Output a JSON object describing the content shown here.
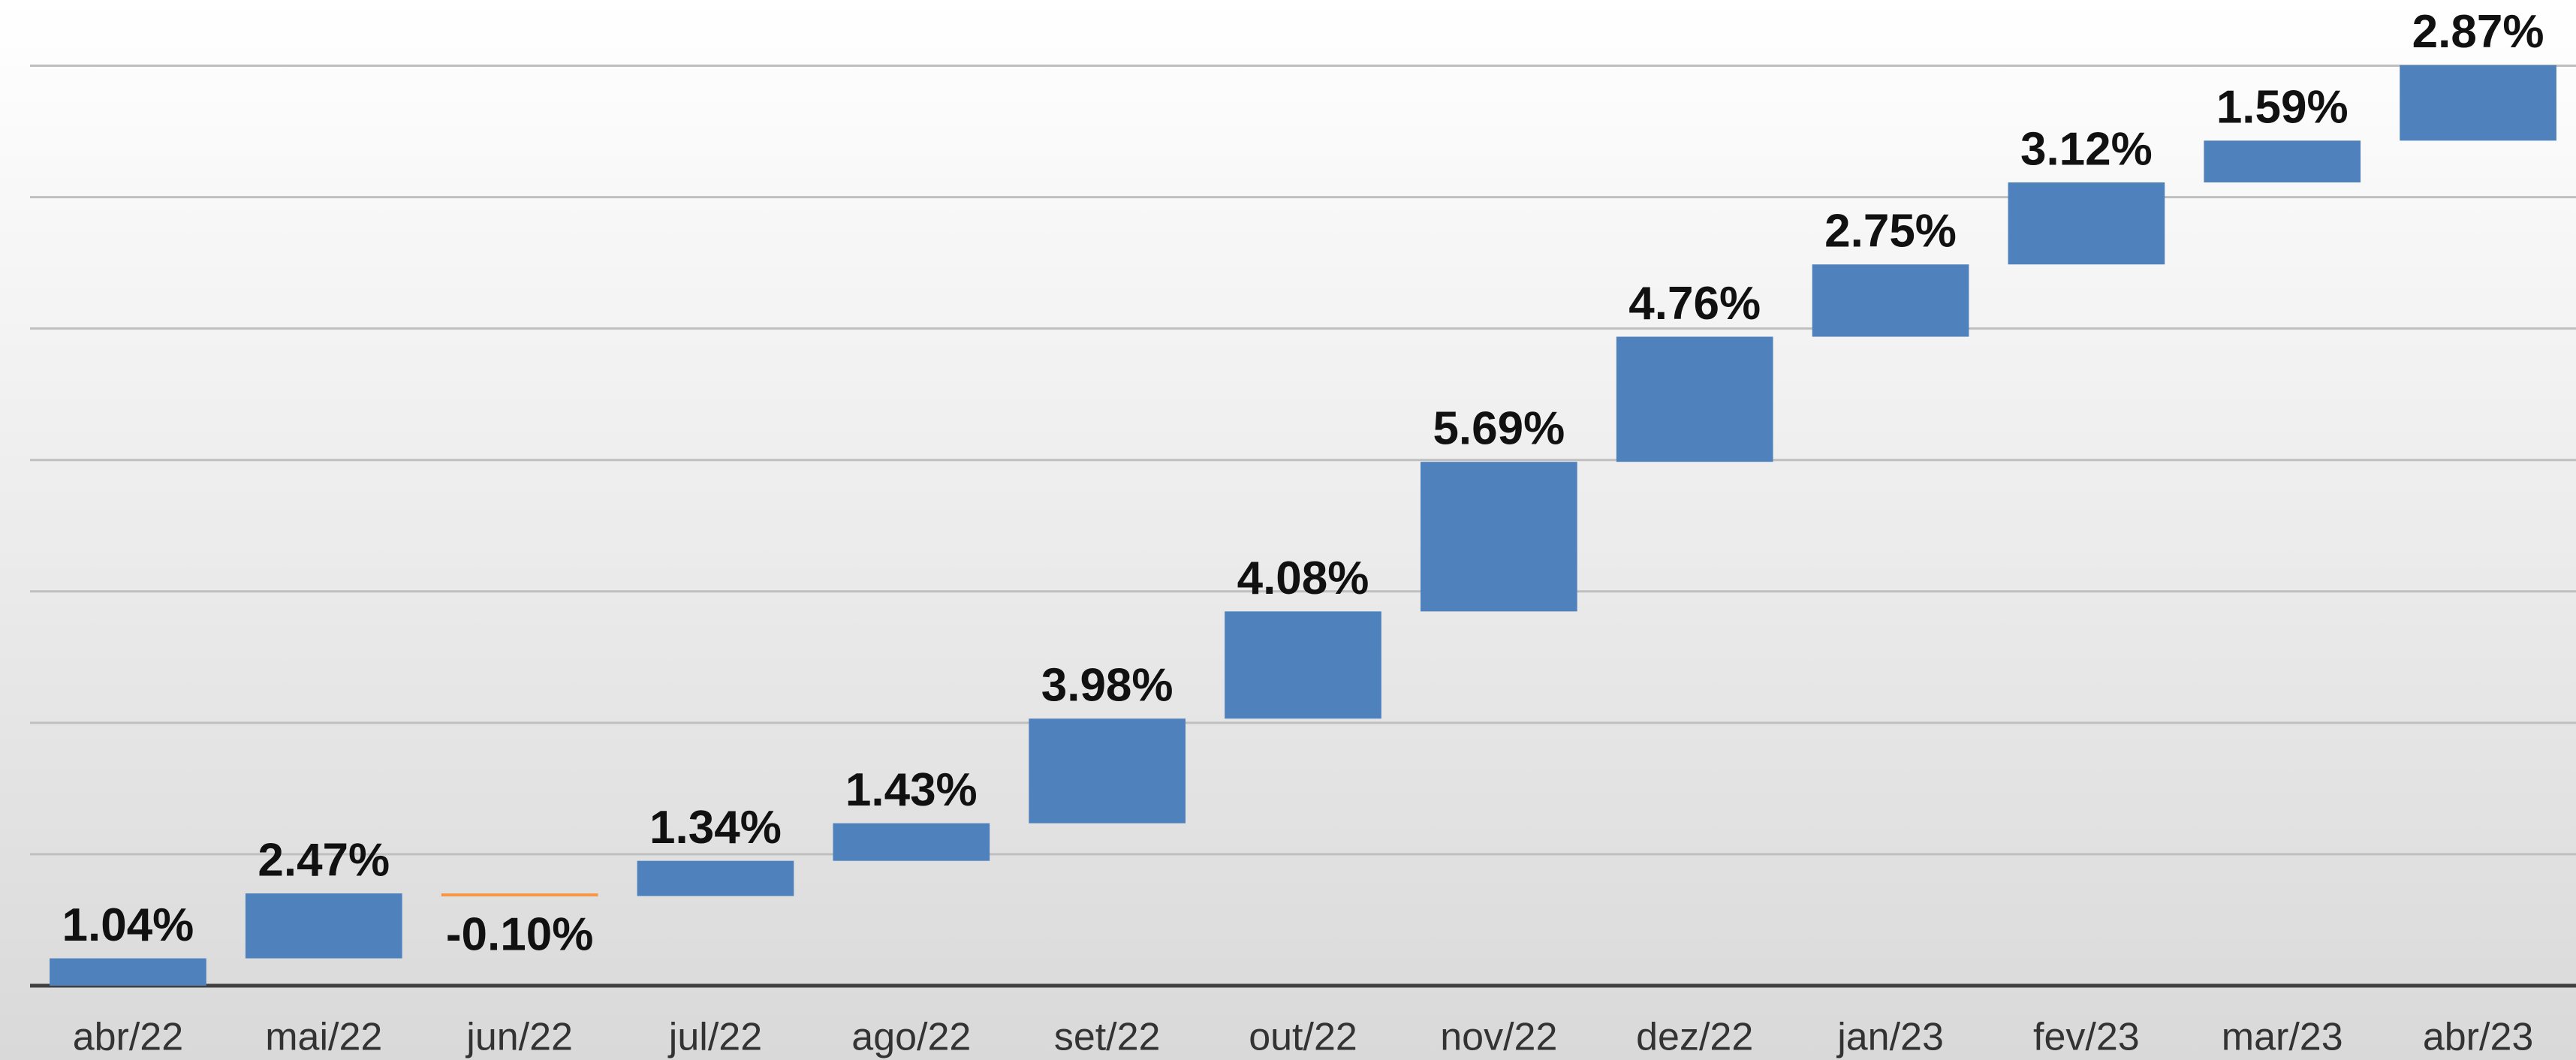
{
  "chart_data": {
    "type": "waterfall",
    "categories": [
      "abr/22",
      "mai/22",
      "jun/22",
      "jul/22",
      "ago/22",
      "set/22",
      "out/22",
      "nov/22",
      "dez/22",
      "jan/23",
      "fev/23",
      "mar/23",
      "abr/23"
    ],
    "values": [
      1.04,
      2.47,
      -0.1,
      1.34,
      1.43,
      3.98,
      4.08,
      5.69,
      4.76,
      2.75,
      3.12,
      1.59,
      2.87
    ],
    "value_labels": [
      "1.04%",
      "2.47%",
      "-0.10%",
      "1.34%",
      "1.43%",
      "3.98%",
      "4.08%",
      "5.69%",
      "4.76%",
      "2.75%",
      "3.12%",
      "1.59%",
      "2.87%"
    ],
    "increase_color": "#4f81bd",
    "decrease_color": "#f79646",
    "ylim": [
      0,
      37.5
    ],
    "yticks": [
      0,
      5,
      10,
      15,
      20,
      25,
      30,
      35
    ],
    "grid": true
  }
}
